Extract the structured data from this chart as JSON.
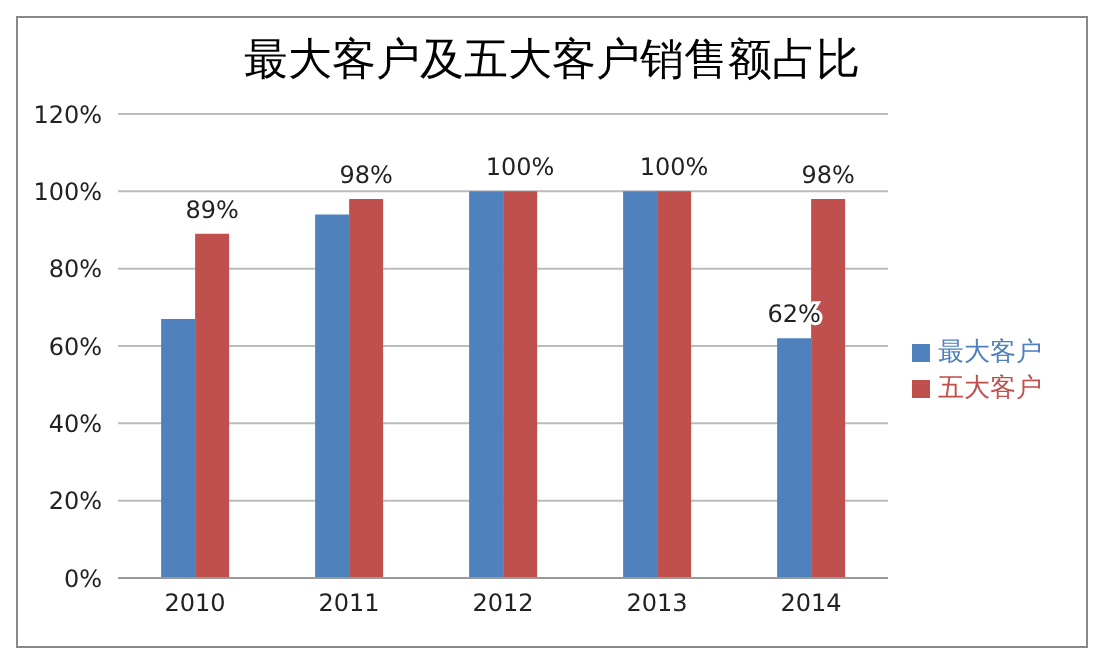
{
  "chart_data": {
    "type": "bar",
    "title": "最大客户及五大客户销售额占比",
    "categories": [
      "2010",
      "2011",
      "2012",
      "2013",
      "2014"
    ],
    "series": [
      {
        "name": "最大客户",
        "color": "#4f81bd",
        "values": [
          67,
          94,
          100,
          100,
          62
        ],
        "value_labels": [
          null,
          null,
          null,
          null,
          "62%"
        ]
      },
      {
        "name": "五大客户",
        "color": "#c0504d",
        "values": [
          89,
          98,
          100,
          100,
          98
        ],
        "value_labels": [
          "89%",
          "98%",
          "100%",
          "100%",
          "98%"
        ]
      }
    ],
    "ylim": [
      0,
      120
    ],
    "yticks": [
      {
        "value": 0,
        "label": "0%"
      },
      {
        "value": 20,
        "label": "20%"
      },
      {
        "value": 40,
        "label": "40%"
      },
      {
        "value": 60,
        "label": "60%"
      },
      {
        "value": 80,
        "label": "80%"
      },
      {
        "value": 100,
        "label": "100%"
      },
      {
        "value": 120,
        "label": "120%"
      }
    ],
    "grid": "y",
    "legend": "right"
  }
}
